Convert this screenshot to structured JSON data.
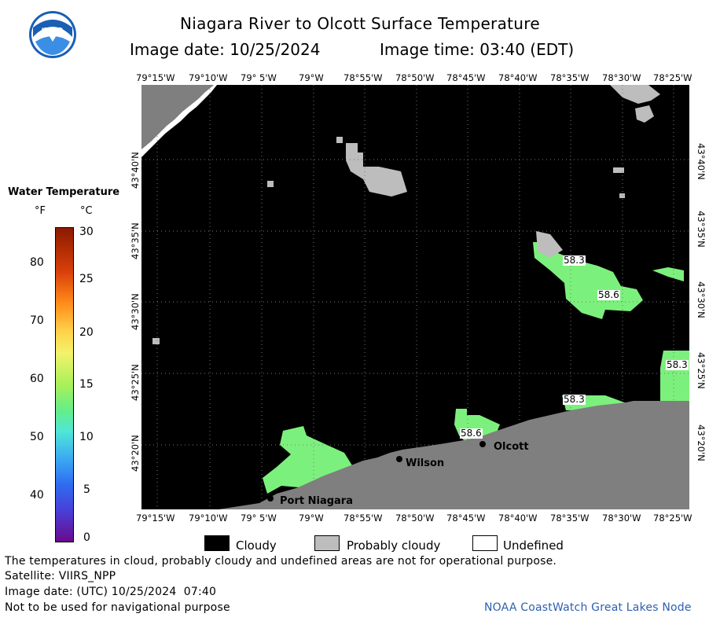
{
  "header": {
    "title": "Niagara River to Olcott Surface Temperature",
    "image_date_label": "Image date: 10/25/2024",
    "image_time_label": "Image time: 03:40 (EDT)"
  },
  "logo": {
    "text": "NOAA"
  },
  "map": {
    "lon_labels": [
      "79°15'W",
      "79°10'W",
      "79° 5'W",
      "79°W",
      "78°55'W",
      "78°50'W",
      "78°45'W",
      "78°40'W",
      "78°35'W",
      "78°30'W",
      "78°25'W"
    ],
    "lat_labels": [
      "43°40'N",
      "43°35'N",
      "43°30'N",
      "43°25'N",
      "43°20'N"
    ],
    "places": [
      "Port Niagara",
      "Wilson",
      "Olcott"
    ],
    "temperature_labels": [
      "58.3",
      "58.6",
      "58.3",
      "58.3",
      "58.6"
    ]
  },
  "colorbar": {
    "title": "Water Temperature",
    "unit_f": "°F",
    "unit_c": "°C",
    "f_ticks": [
      "80",
      "70",
      "60",
      "50",
      "40"
    ],
    "c_ticks": [
      "30",
      "25",
      "20",
      "15",
      "10",
      "5",
      "0"
    ]
  },
  "legend": {
    "cloudy": "Cloudy",
    "probably_cloudy": "Probably cloudy",
    "undefined": "Undefined",
    "colors": {
      "cloudy": "#000000",
      "probably_cloudy": "#bebebe",
      "undefined": "#ffffff",
      "land": "#808080",
      "water_58": "#7cf07c"
    }
  },
  "footer": {
    "disclaimer": "The temperatures in cloud, probably cloudy and undefined areas are not for operational purpose.",
    "satellite": "Satellite: VIIRS_NPP",
    "utc_date": "Image date: (UTC) 10/25/2024  07:40",
    "nav_warning": "Not to be used for navigational purpose",
    "credit": "NOAA CoastWatch Great Lakes Node"
  }
}
